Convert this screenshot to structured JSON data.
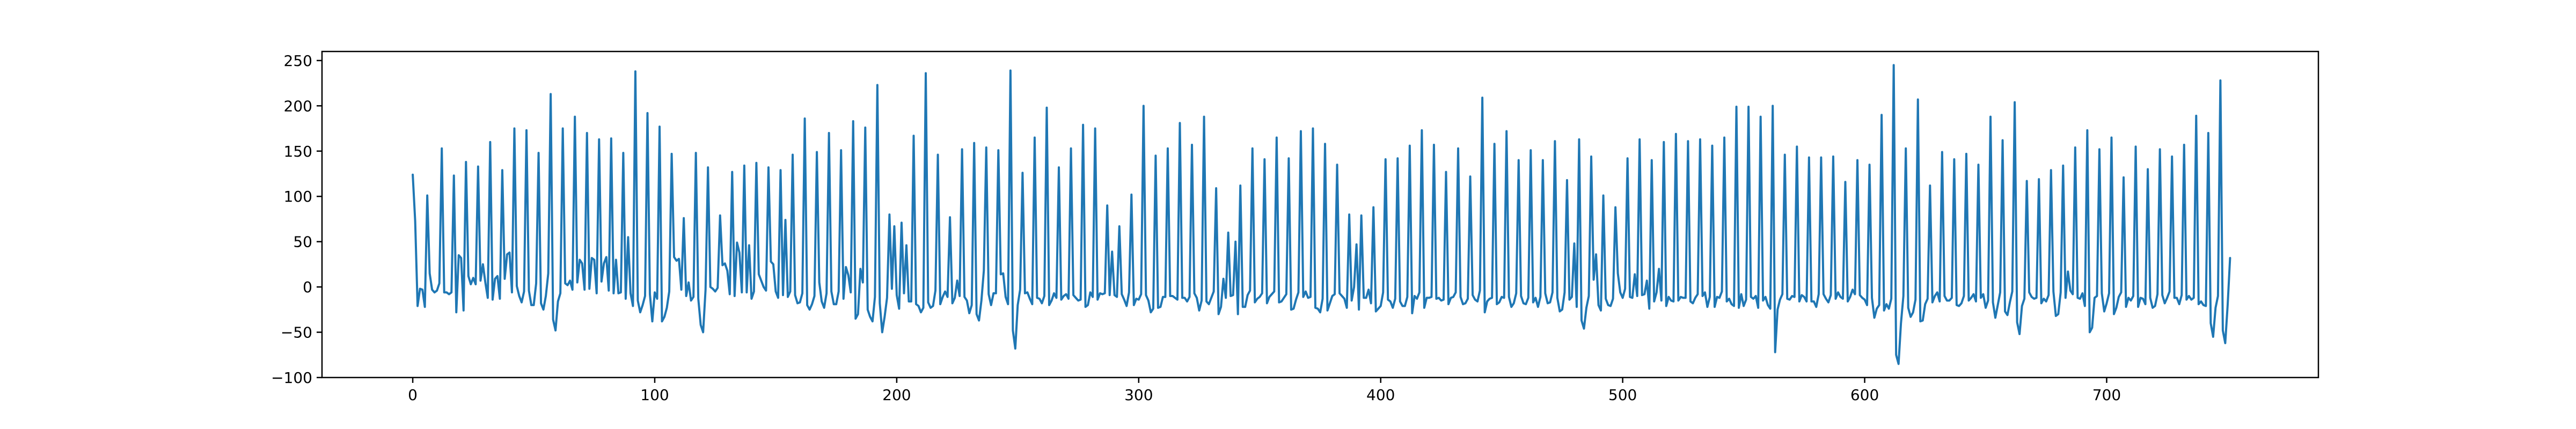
{
  "chart_data": {
    "type": "line",
    "title": "",
    "xlabel": "",
    "ylabel": "",
    "xlim": [
      -37.5,
      787.5
    ],
    "ylim": [
      -100,
      260
    ],
    "x_ticks": [
      0,
      100,
      200,
      300,
      400,
      500,
      600,
      700
    ],
    "y_ticks": [
      -100,
      -50,
      0,
      50,
      100,
      150,
      200,
      250
    ],
    "grid": false,
    "legend": "none",
    "x_start": 0,
    "x_step": 1,
    "series": [
      {
        "color": "#1f77b4",
        "values": [
          124,
          73,
          -21,
          -2,
          -3,
          -22,
          101,
          15,
          -3,
          -6,
          -4,
          4,
          153,
          -6,
          -6,
          -8,
          -6,
          123,
          -28,
          35,
          32,
          -26,
          138,
          12,
          3,
          10,
          3,
          133,
          7,
          25,
          5,
          -12,
          160,
          -14,
          9,
          12,
          -13,
          129,
          9,
          36,
          38,
          -6,
          175,
          1,
          -10,
          -17,
          -5,
          173,
          -4,
          -20,
          -20,
          4,
          148,
          -18,
          -25,
          -10,
          15,
          213,
          -36,
          -48,
          -16,
          -7,
          175,
          4,
          2,
          7,
          -3,
          188,
          5,
          30,
          26,
          -3,
          170,
          -2,
          32,
          30,
          -7,
          163,
          6,
          26,
          33,
          -4,
          164,
          -7,
          30,
          -7,
          -6,
          148,
          -13,
          55,
          -7,
          -21,
          238,
          -15,
          -28,
          -20,
          -10,
          192,
          -8,
          -38,
          -6,
          -13,
          177,
          -38,
          -33,
          -23,
          -5,
          147,
          33,
          29,
          31,
          -3,
          76,
          -10,
          5,
          -15,
          -11,
          148,
          -13,
          -42,
          -50,
          -3,
          132,
          0,
          -2,
          -5,
          -1,
          79,
          24,
          26,
          18,
          -8,
          127,
          -10,
          49,
          38,
          -6,
          134,
          -6,
          46,
          -13,
          -5,
          137,
          14,
          7,
          0,
          -4,
          132,
          28,
          25,
          -5,
          -12,
          129,
          -9,
          74,
          -11,
          -5,
          146,
          -9,
          -18,
          -17,
          -7,
          186,
          -20,
          -25,
          -19,
          -10,
          149,
          5,
          -16,
          -23,
          -7,
          170,
          -5,
          -19,
          -19,
          -5,
          151,
          -13,
          22,
          13,
          -6,
          183,
          -35,
          -30,
          20,
          5,
          176,
          -25,
          -33,
          -38,
          -11,
          223,
          -18,
          -50,
          -33,
          -12,
          80,
          -2,
          67,
          -9,
          -24,
          71,
          -7,
          46,
          -16,
          -16,
          167,
          -19,
          -21,
          -28,
          -23,
          236,
          -17,
          -23,
          -21,
          -4,
          146,
          -19,
          -11,
          -5,
          -11,
          77,
          -18,
          -12,
          7,
          -10,
          152,
          -11,
          -15,
          -29,
          -20,
          159,
          -30,
          -37,
          -15,
          18,
          154,
          -8,
          -20,
          -7,
          -7,
          151,
          14,
          15,
          -11,
          -19,
          239,
          -48,
          -68,
          -20,
          -3,
          126,
          -7,
          -6,
          -13,
          -19,
          165,
          -12,
          -13,
          -18,
          -10,
          198,
          -20,
          -15,
          -7,
          -12,
          132,
          -14,
          -10,
          -8,
          -13,
          153,
          -9,
          -12,
          -15,
          -14,
          179,
          -22,
          -20,
          -6,
          -11,
          175,
          -14,
          -7,
          -8,
          -7,
          90,
          -9,
          39,
          -9,
          -11,
          67,
          -8,
          -14,
          -21,
          -6,
          102,
          -20,
          -13,
          -14,
          -8,
          200,
          -9,
          -15,
          -28,
          -24,
          145,
          -23,
          -22,
          -11,
          -11,
          153,
          -10,
          -10,
          -12,
          -14,
          181,
          -12,
          -12,
          -16,
          -11,
          157,
          -7,
          -12,
          -26,
          -15,
          188,
          -16,
          -19,
          -12,
          -5,
          109,
          -30,
          -22,
          9,
          -12,
          60,
          -10,
          -9,
          50,
          -30,
          112,
          -22,
          -22,
          -9,
          -4,
          153,
          -17,
          -13,
          -11,
          -7,
          141,
          -18,
          -11,
          -8,
          -5,
          165,
          -17,
          -16,
          -12,
          -8,
          142,
          -25,
          -24,
          -14,
          -6,
          172,
          -11,
          -5,
          -12,
          -11,
          175,
          -23,
          -24,
          -28,
          -13,
          158,
          -26,
          -18,
          -10,
          -8,
          135,
          -7,
          -10,
          -13,
          -23,
          80,
          -15,
          0,
          47,
          -25,
          79,
          -12,
          -12,
          -3,
          -18,
          88,
          -27,
          -24,
          -21,
          -6,
          141,
          -14,
          -16,
          -23,
          -13,
          142,
          -16,
          -21,
          -21,
          -11,
          156,
          -29,
          -10,
          -13,
          -6,
          173,
          -23,
          -12,
          -12,
          -11,
          157,
          -13,
          -12,
          -15,
          -14,
          127,
          -19,
          -12,
          -11,
          -6,
          153,
          -11,
          -19,
          -18,
          -13,
          122,
          -9,
          -14,
          -16,
          -4,
          209,
          -28,
          -16,
          -13,
          -12,
          158,
          -19,
          -17,
          -11,
          -12,
          172,
          -11,
          -22,
          -18,
          -7,
          140,
          -10,
          -18,
          -19,
          -12,
          151,
          -17,
          -12,
          -22,
          -11,
          140,
          -7,
          -18,
          -17,
          -6,
          161,
          -12,
          -27,
          -25,
          -6,
          118,
          -14,
          -11,
          48,
          -22,
          163,
          -37,
          -46,
          -23,
          -10,
          144,
          8,
          36,
          -20,
          -26,
          101,
          -13,
          -20,
          -21,
          -13,
          88,
          15,
          -6,
          -12,
          -2,
          142,
          -11,
          -12,
          14,
          -10,
          163,
          -9,
          -8,
          7,
          -24,
          140,
          -16,
          -6,
          20,
          -15,
          160,
          -21,
          -11,
          -15,
          -16,
          169,
          -15,
          -11,
          -12,
          -12,
          161,
          -16,
          -18,
          -12,
          -8,
          163,
          -10,
          -6,
          -22,
          -11,
          156,
          -22,
          -11,
          -12,
          -5,
          165,
          -16,
          -13,
          -19,
          -21,
          199,
          -23,
          -8,
          -21,
          -14,
          199,
          -11,
          -13,
          -10,
          -23,
          188,
          -15,
          -11,
          -20,
          -24,
          200,
          -72,
          -25,
          -14,
          -8,
          146,
          -13,
          -14,
          -10,
          -11,
          155,
          -16,
          -9,
          -11,
          -16,
          143,
          -16,
          -16,
          -22,
          -8,
          143,
          -8,
          -13,
          -17,
          -9,
          144,
          -13,
          -6,
          -11,
          -13,
          116,
          -16,
          -11,
          -3,
          -8,
          140,
          -9,
          -12,
          -14,
          -20,
          135,
          -12,
          -34,
          -24,
          -20,
          190,
          -26,
          -19,
          -24,
          -13,
          245,
          -75,
          -85,
          -40,
          -10,
          153,
          -23,
          -33,
          -28,
          -14,
          207,
          -38,
          -37,
          -19,
          -13,
          112,
          -17,
          -10,
          -6,
          -16,
          149,
          -10,
          -15,
          -15,
          -12,
          141,
          -20,
          -21,
          -18,
          -10,
          147,
          -15,
          -12,
          -8,
          -16,
          135,
          -12,
          -8,
          -23,
          -15,
          188,
          -17,
          -34,
          -20,
          -6,
          162,
          -27,
          -31,
          -17,
          -5,
          204,
          -39,
          -52,
          -21,
          -13,
          117,
          -6,
          -11,
          -13,
          -12,
          119,
          -18,
          -13,
          -16,
          -9,
          129,
          -5,
          -32,
          -30,
          -6,
          134,
          -12,
          17,
          -4,
          -8,
          154,
          -12,
          -13,
          -7,
          -21,
          173,
          -50,
          -45,
          -12,
          -10,
          152,
          -7,
          -27,
          -18,
          -7,
          165,
          -30,
          -23,
          -11,
          -6,
          121,
          -22,
          -12,
          -15,
          -10,
          155,
          -22,
          -12,
          -13,
          -19,
          130,
          -12,
          -23,
          -21,
          -8,
          152,
          -9,
          -18,
          -12,
          -5,
          144,
          -12,
          -12,
          -19,
          -9,
          157,
          -14,
          -10,
          -14,
          -12,
          189,
          -19,
          -16,
          -20,
          -21,
          170,
          -40,
          -55,
          -23,
          -10,
          228,
          -48,
          -62,
          -20,
          32
        ]
      }
    ]
  }
}
